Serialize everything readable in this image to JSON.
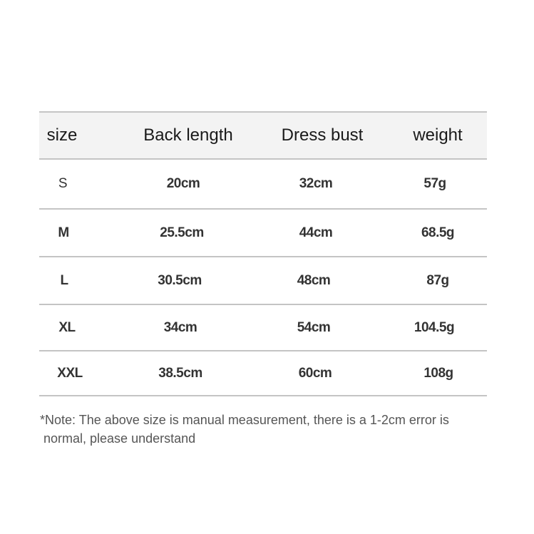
{
  "table": {
    "headers": [
      "size",
      "Back length",
      "Dress bust",
      "weight"
    ],
    "rows": [
      [
        "S",
        "20cm",
        "32cm",
        "57g"
      ],
      [
        "M",
        "25.5cm",
        "44cm",
        "68.5g"
      ],
      [
        "L",
        "30.5cm",
        "48cm",
        "87g"
      ],
      [
        "XL",
        "34cm",
        "54cm",
        "104.5g"
      ],
      [
        "XXL",
        "38.5cm",
        "60cm",
        "108g"
      ]
    ]
  },
  "note": {
    "line1": "*Note: The above size is manual measurement, there is a 1-2cm error is",
    "line2": " normal, please understand"
  }
}
